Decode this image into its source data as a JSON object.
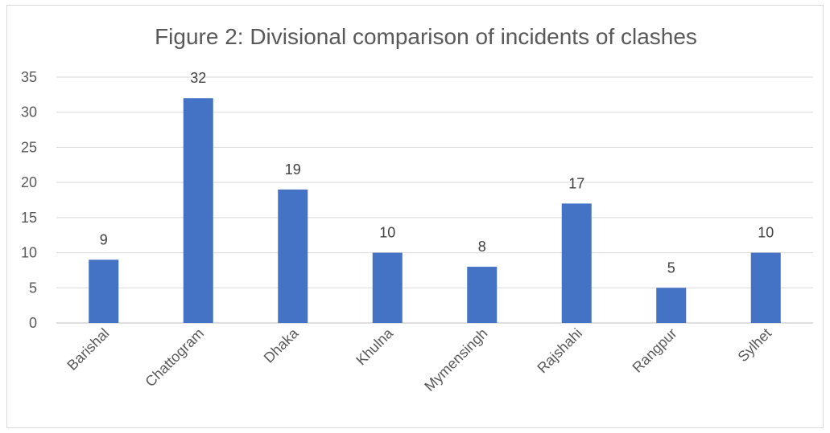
{
  "chart_data": {
    "type": "bar",
    "title": "Figure 2: Divisional comparison of incidents of clashes",
    "categories": [
      "Barishal",
      "Chattogram",
      "Dhaka",
      "Khulna",
      "Mymensingh",
      "Rajshahi",
      "Rangpur",
      "Sylhet"
    ],
    "values": [
      9,
      32,
      19,
      10,
      8,
      17,
      5,
      10
    ],
    "ylim": [
      0,
      35
    ],
    "yticks": [
      0,
      5,
      10,
      15,
      20,
      25,
      30,
      35
    ],
    "xlabel": "",
    "ylabel": "",
    "grid": true,
    "data_labels": true,
    "bar_color": "#4472C4"
  }
}
